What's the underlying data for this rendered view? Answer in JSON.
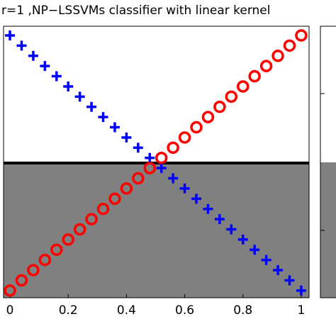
{
  "chart_data": {
    "type": "scatter",
    "title": "r=1 ,NP−LSSVMs classifier with linear kernel",
    "x": [
      0,
      0.04,
      0.08,
      0.12,
      0.16,
      0.2,
      0.24,
      0.28,
      0.32,
      0.36,
      0.4,
      0.44,
      0.48,
      0.52,
      0.56,
      0.6,
      0.64,
      0.68,
      0.72,
      0.76,
      0.8,
      0.84,
      0.88,
      0.92,
      0.96,
      1
    ],
    "series": [
      {
        "color": "#0000ff",
        "marker": "plus",
        "values": [
          1,
          0.96,
          0.92,
          0.88,
          0.84,
          0.8,
          0.76,
          0.72,
          0.68,
          0.64,
          0.6,
          0.56,
          0.52,
          0.48,
          0.44,
          0.4,
          0.36,
          0.32,
          0.28,
          0.24,
          0.2,
          0.16,
          0.12,
          0.08,
          0.04,
          0
        ]
      },
      {
        "color": "#ff0000",
        "marker": "circle",
        "values": [
          0,
          0.04,
          0.08,
          0.12,
          0.16,
          0.2,
          0.24,
          0.28,
          0.32,
          0.36,
          0.4,
          0.44,
          0.48,
          0.52,
          0.56,
          0.6,
          0.64,
          0.68,
          0.72,
          0.76,
          0.8,
          0.84,
          0.88,
          0.92,
          0.96,
          1
        ]
      }
    ],
    "threshold": 0.5,
    "region_color": "#808080",
    "xlim": [
      -0.022,
      1.027
    ],
    "xticks": [
      0,
      0.2,
      0.4,
      0.6,
      0.8,
      1
    ],
    "ylim": [
      -0.028,
      1.036
    ]
  }
}
